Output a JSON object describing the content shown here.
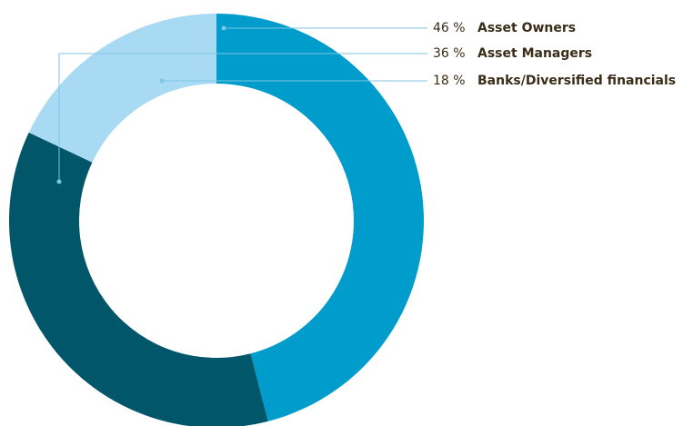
{
  "chart_data": {
    "type": "donut",
    "categories": [
      "Asset Owners",
      "Asset Managers",
      "Banks/Diversified financials"
    ],
    "values": [
      46,
      36,
      18
    ],
    "value_labels": [
      "46 %",
      "36 %",
      "18 %"
    ],
    "colors": [
      "#009ccc",
      "#02566a",
      "#a9daf3"
    ]
  }
}
